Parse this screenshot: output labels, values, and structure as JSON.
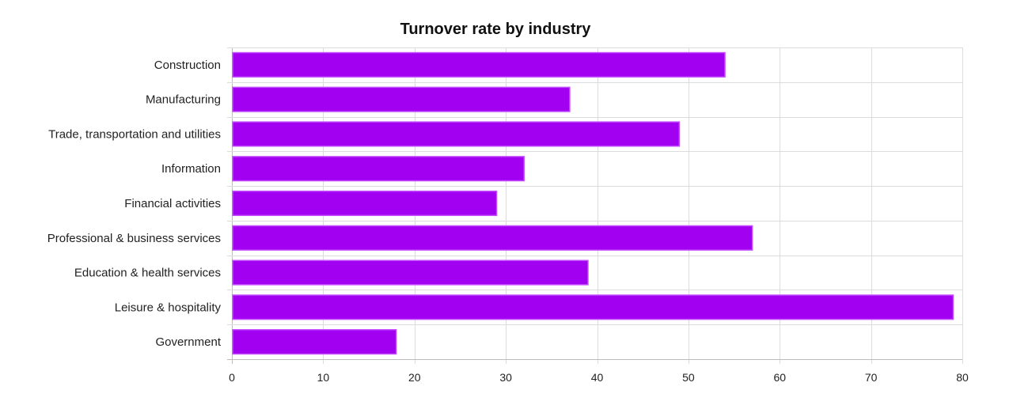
{
  "chart_data": {
    "type": "bar",
    "orientation": "horizontal",
    "title": "Turnover rate by industry",
    "xlabel": "",
    "ylabel": "",
    "categories": [
      "Construction",
      "Manufacturing",
      "Trade, transportation and utilities",
      "Information",
      "Financial activities",
      "Professional & business services",
      "Education & health services",
      "Leisure & hospitality",
      "Government"
    ],
    "values": [
      54,
      37,
      49,
      32,
      29,
      57,
      39,
      79,
      18
    ],
    "xlim": [
      0,
      80
    ],
    "ticks": [
      0,
      10,
      20,
      30,
      40,
      50,
      60,
      70,
      80
    ],
    "grid": true,
    "legend": "none",
    "colors": {
      "bar_fill": "#a200f0",
      "bar_stroke": "#c24dff"
    }
  }
}
